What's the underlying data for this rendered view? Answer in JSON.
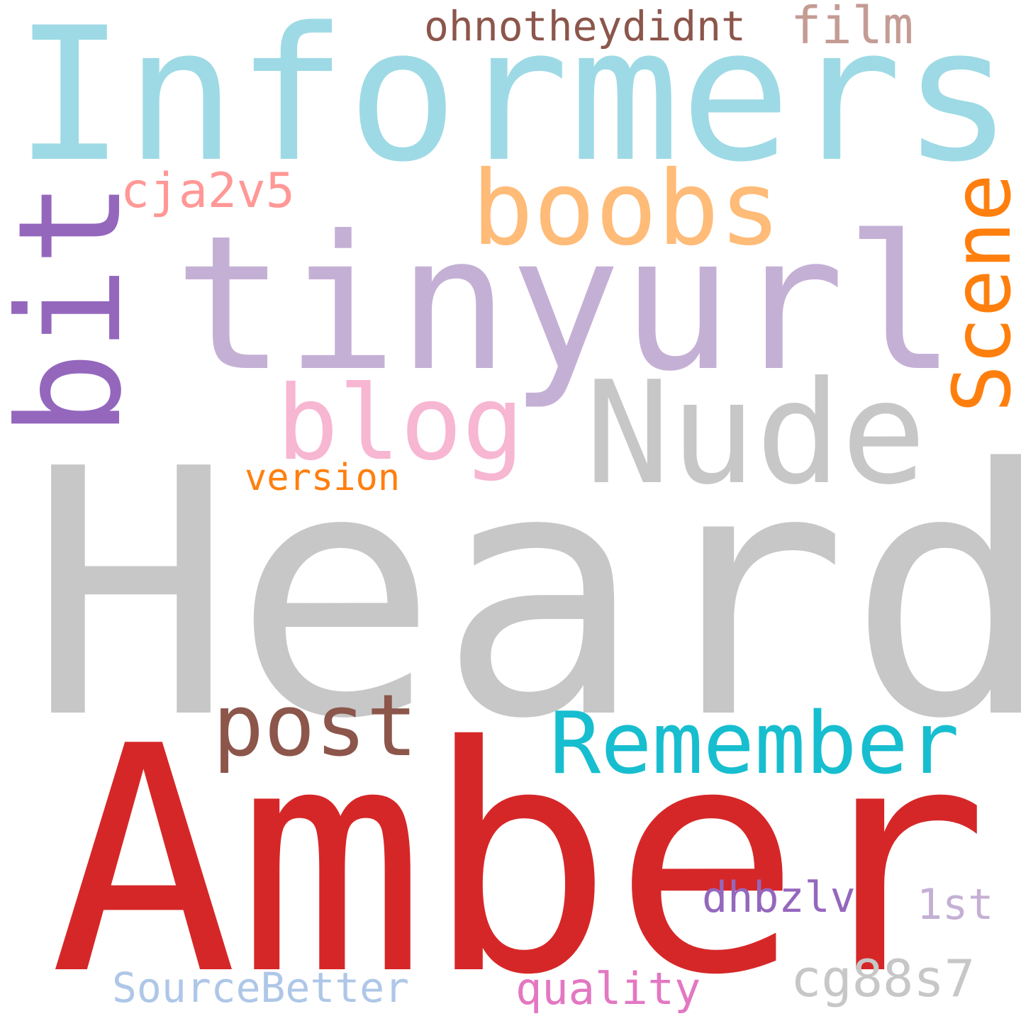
{
  "words": {
    "heard": {
      "text": "Heard",
      "color": "#c7c7c7"
    },
    "amber": {
      "text": "Amber",
      "color": "#d62728"
    },
    "informers": {
      "text": "Informers",
      "color": "#9edae5"
    },
    "tinyurl": {
      "text": "tinyurl",
      "color": "#c5b0d5"
    },
    "nude": {
      "text": "Nude",
      "color": "#c7c7c7"
    },
    "bit": {
      "text": "bit",
      "color": "#9467bd"
    },
    "boobs": {
      "text": "boobs",
      "color": "#ffbb78"
    },
    "scene": {
      "text": "Scene",
      "color": "#ff7f0e"
    },
    "blog": {
      "text": "blog",
      "color": "#f7b6d2"
    },
    "remember": {
      "text": "Remember",
      "color": "#17becf"
    },
    "post": {
      "text": "post",
      "color": "#8c564b"
    },
    "ohnotheydidnt": {
      "text": "ohnotheydidnt",
      "color": "#8c564b"
    },
    "film": {
      "text": "film",
      "color": "#c49c94"
    },
    "cja2v5": {
      "text": "cja2v5",
      "color": "#ff9896"
    },
    "version": {
      "text": "version",
      "color": "#ff7f0e"
    },
    "dhbzlv": {
      "text": "dhbzlv",
      "color": "#9467bd"
    },
    "first": {
      "text": "1st",
      "color": "#c5b0d5"
    },
    "cg88s7": {
      "text": "cg88s7",
      "color": "#c7c7c7"
    },
    "quality": {
      "text": "quality",
      "color": "#e377c2"
    },
    "sourcebetter": {
      "text": "SourceBetter",
      "color": "#aec7e8"
    }
  }
}
